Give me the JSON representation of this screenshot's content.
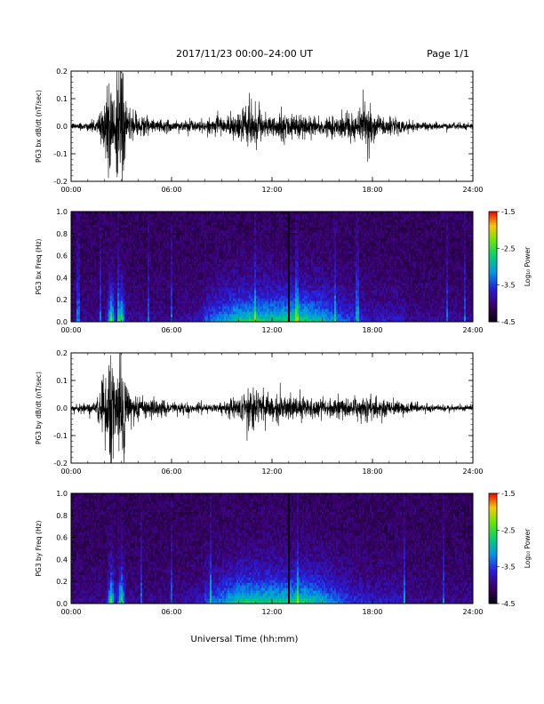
{
  "header": {
    "title": "2017/11/23  00:00–24:00 UT",
    "page": "Page 1/1"
  },
  "xaxis": {
    "label": "Universal Time (hh:mm)",
    "ticks": [
      "00:00",
      "06:00",
      "12:00",
      "18:00",
      "24:00"
    ],
    "range_hours": [
      0,
      24
    ]
  },
  "colorbar": {
    "label": "Log₁₀ Power",
    "ticks": [
      "-1.5",
      "-2.5",
      "-3.5",
      "-4.5"
    ],
    "range": [
      -4.5,
      -1.5
    ]
  },
  "chart_data": [
    {
      "type": "line",
      "title": "",
      "ylabel": "PG3 bx dB/dt (nT/sec)",
      "xlabel": "",
      "xlim": [
        0,
        24
      ],
      "ylim": [
        -0.2,
        0.2
      ],
      "yticks": [
        "0.2",
        "0.1",
        "0.0",
        "-0.1",
        "-0.2"
      ],
      "color": "#000000",
      "envelope": {
        "x": [
          0,
          1.5,
          2.1,
          2.3,
          2.6,
          2.9,
          3.1,
          3.3,
          4,
          5,
          6,
          8,
          9,
          10,
          10.5,
          11,
          11.5,
          12,
          13,
          14,
          15,
          16,
          17,
          17.5,
          18,
          19,
          20,
          21,
          22,
          24
        ],
        "amplitude": [
          0.01,
          0.02,
          0.12,
          0.22,
          0.1,
          0.18,
          0.22,
          0.06,
          0.04,
          0.03,
          0.02,
          0.02,
          0.025,
          0.04,
          0.07,
          0.06,
          0.05,
          0.04,
          0.045,
          0.04,
          0.035,
          0.035,
          0.05,
          0.07,
          0.05,
          0.03,
          0.02,
          0.015,
          0.012,
          0.01
        ]
      }
    },
    {
      "type": "heatmap",
      "title": "",
      "ylabel": "PG3 bx Freq (Hz)",
      "xlabel": "",
      "xlim": [
        0,
        24
      ],
      "ylim": [
        0,
        1.0
      ],
      "yticks": [
        "1.0",
        "0.8",
        "0.6",
        "0.4",
        "0.2",
        "0.0"
      ],
      "zlim": [
        -4.5,
        -1.5
      ],
      "data_gap_hours": 13.0,
      "features": [
        {
          "hour": 2.4,
          "note": "broadband burst"
        },
        {
          "hour": 3.0,
          "note": "broadband burst"
        },
        {
          "hour": 10.5,
          "note": "low-frequency enhancement"
        },
        {
          "hour": 14.0,
          "note": "enhancement up to 0.4 Hz"
        }
      ]
    },
    {
      "type": "line",
      "title": "",
      "ylabel": "PG3 by dB/dt (nT/sec)",
      "xlabel": "",
      "xlim": [
        0,
        24
      ],
      "ylim": [
        -0.2,
        0.2
      ],
      "yticks": [
        "0.2",
        "0.1",
        "0.0",
        "-0.1",
        "-0.2"
      ],
      "color": "#000000",
      "envelope": {
        "x": [
          0,
          1.5,
          2.1,
          2.3,
          2.6,
          2.9,
          3.1,
          3.3,
          4,
          5,
          6,
          8,
          9,
          10,
          10.5,
          11,
          11.5,
          12,
          13,
          14,
          15,
          16,
          17,
          17.5,
          18,
          19,
          20,
          21,
          22,
          24
        ],
        "amplitude": [
          0.01,
          0.02,
          0.12,
          0.22,
          0.1,
          0.18,
          0.22,
          0.06,
          0.04,
          0.03,
          0.02,
          0.015,
          0.02,
          0.04,
          0.07,
          0.06,
          0.05,
          0.035,
          0.04,
          0.035,
          0.03,
          0.03,
          0.04,
          0.05,
          0.04,
          0.025,
          0.02,
          0.015,
          0.012,
          0.01
        ]
      }
    },
    {
      "type": "heatmap",
      "title": "",
      "ylabel": "PG3 by Freq (Hz)",
      "xlabel": "",
      "xlim": [
        0,
        24
      ],
      "ylim": [
        0,
        1.0
      ],
      "yticks": [
        "1.0",
        "0.8",
        "0.6",
        "0.4",
        "0.2",
        "0.0"
      ],
      "zlim": [
        -4.5,
        -1.5
      ],
      "data_gap_hours": 13.0,
      "features": [
        {
          "hour": 2.4,
          "note": "broadband burst"
        },
        {
          "hour": 3.0,
          "note": "broadband burst"
        },
        {
          "hour": 10.5,
          "note": "low-frequency enhancement"
        },
        {
          "hour": 14.0,
          "note": "enhancement up to 0.4 Hz"
        }
      ]
    }
  ]
}
